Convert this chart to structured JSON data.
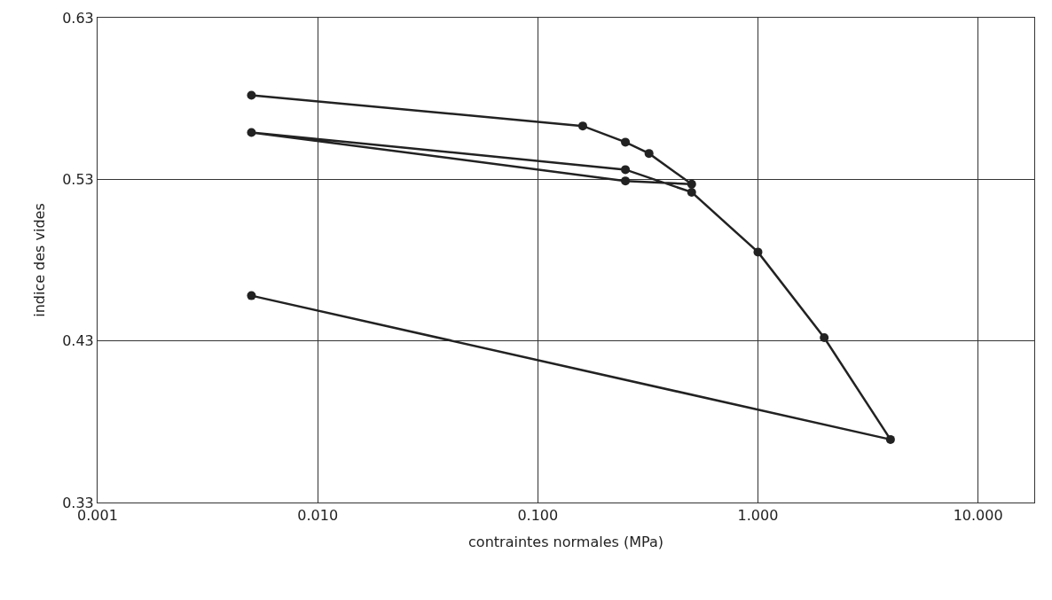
{
  "chart_data": {
    "type": "line",
    "xlabel": "contraintes normales (MPa)",
    "ylabel": "indice des vides",
    "log": "x",
    "xlim": [
      0.001,
      18
    ],
    "xticks": [
      {
        "value": 0.001,
        "label": "0.001"
      },
      {
        "value": 0.01,
        "label": "0.010"
      },
      {
        "value": 0.1,
        "label": "0.100"
      },
      {
        "value": 1,
        "label": "1.000"
      },
      {
        "value": 10,
        "label": "10.000"
      }
    ],
    "ylim": [
      0.33,
      0.63
    ],
    "yticks": [
      0.33,
      0.43,
      0.53,
      0.63
    ],
    "grid": true,
    "marker": "circle",
    "line_style": "solid",
    "series": [
      {
        "color": "#222222",
        "x": [
          0.005,
          0.16,
          0.25,
          0.32,
          0.5,
          0.25,
          0.005,
          0.25,
          0.5,
          1.0,
          2.0,
          4.0,
          0.005
        ],
        "values": [
          0.582,
          0.563,
          0.553,
          0.546,
          0.527,
          0.529,
          0.559,
          0.536,
          0.522,
          0.485,
          0.432,
          0.369,
          0.458
        ]
      }
    ]
  }
}
